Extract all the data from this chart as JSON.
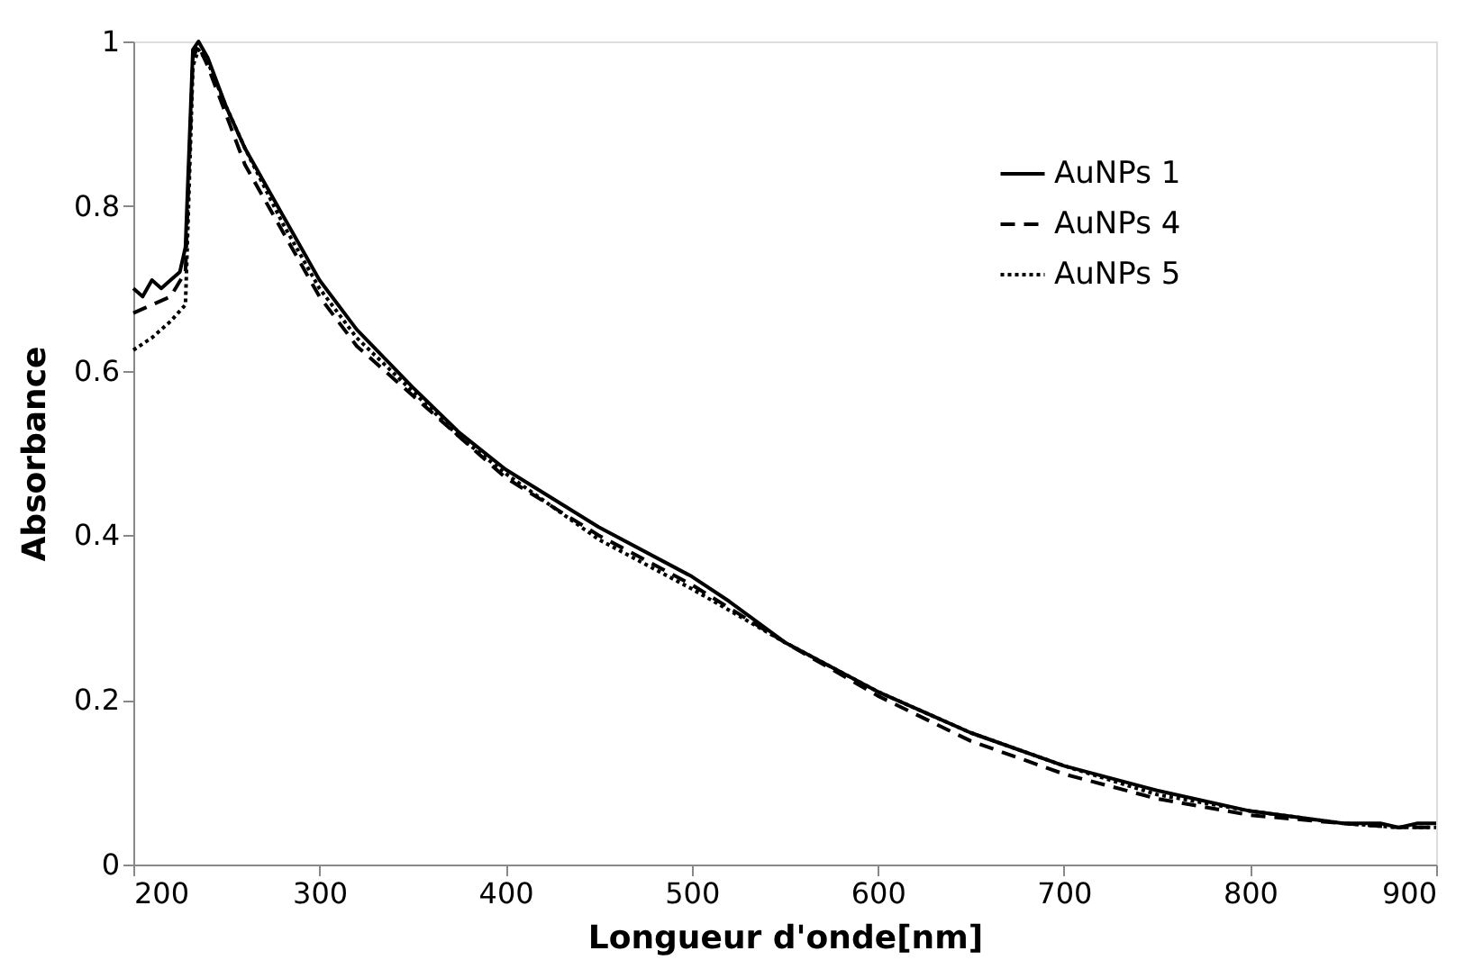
{
  "chart_data": {
    "type": "line",
    "xlabel": "Longueur d'onde[nm]",
    "ylabel": "Absorbance",
    "xlim": [
      200,
      900
    ],
    "xticks": [
      200,
      300,
      400,
      500,
      600,
      700,
      800,
      900
    ],
    "ylim": [
      0,
      1
    ],
    "yticks": [
      0,
      0.2,
      0.4,
      0.6,
      0.8,
      1
    ],
    "grid": false,
    "legend": "top right",
    "marker": "none",
    "series": [
      {
        "name": "AuNPs 1",
        "color": "#000000",
        "line_style": "solid",
        "x": [
          200,
          205,
          210,
          215,
          220,
          225,
          228,
          232,
          235,
          240,
          250,
          260,
          280,
          300,
          320,
          350,
          375,
          400,
          450,
          500,
          520,
          550,
          600,
          650,
          700,
          750,
          800,
          850,
          870,
          880,
          890,
          900
        ],
        "values": [
          0.7,
          0.69,
          0.71,
          0.7,
          0.71,
          0.72,
          0.75,
          0.99,
          1.0,
          0.98,
          0.92,
          0.87,
          0.79,
          0.71,
          0.65,
          0.58,
          0.525,
          0.48,
          0.41,
          0.35,
          0.32,
          0.27,
          0.21,
          0.16,
          0.12,
          0.09,
          0.065,
          0.05,
          0.05,
          0.045,
          0.05,
          0.05
        ]
      },
      {
        "name": "AuNPs 4",
        "color": "#000000",
        "line_style": "dashed",
        "x": [
          200,
          210,
          220,
          228,
          232,
          235,
          240,
          250,
          260,
          280,
          300,
          320,
          350,
          375,
          400,
          450,
          500,
          550,
          600,
          650,
          700,
          750,
          800,
          850,
          880,
          900
        ],
        "values": [
          0.67,
          0.68,
          0.69,
          0.72,
          0.98,
          0.995,
          0.97,
          0.91,
          0.85,
          0.77,
          0.69,
          0.63,
          0.57,
          0.52,
          0.47,
          0.4,
          0.34,
          0.27,
          0.205,
          0.15,
          0.11,
          0.08,
          0.06,
          0.05,
          0.045,
          0.045
        ]
      },
      {
        "name": "AuNPs 5",
        "color": "#000000",
        "line_style": "dotted",
        "x": [
          200,
          210,
          220,
          228,
          232,
          235,
          240,
          250,
          260,
          280,
          300,
          320,
          350,
          375,
          400,
          450,
          500,
          550,
          600,
          650,
          700,
          750,
          800,
          850,
          880,
          900
        ],
        "values": [
          0.625,
          0.64,
          0.66,
          0.68,
          0.97,
          0.99,
          0.975,
          0.92,
          0.87,
          0.78,
          0.7,
          0.64,
          0.575,
          0.52,
          0.475,
          0.395,
          0.335,
          0.27,
          0.21,
          0.16,
          0.12,
          0.085,
          0.065,
          0.05,
          0.045,
          0.045
        ]
      }
    ]
  }
}
